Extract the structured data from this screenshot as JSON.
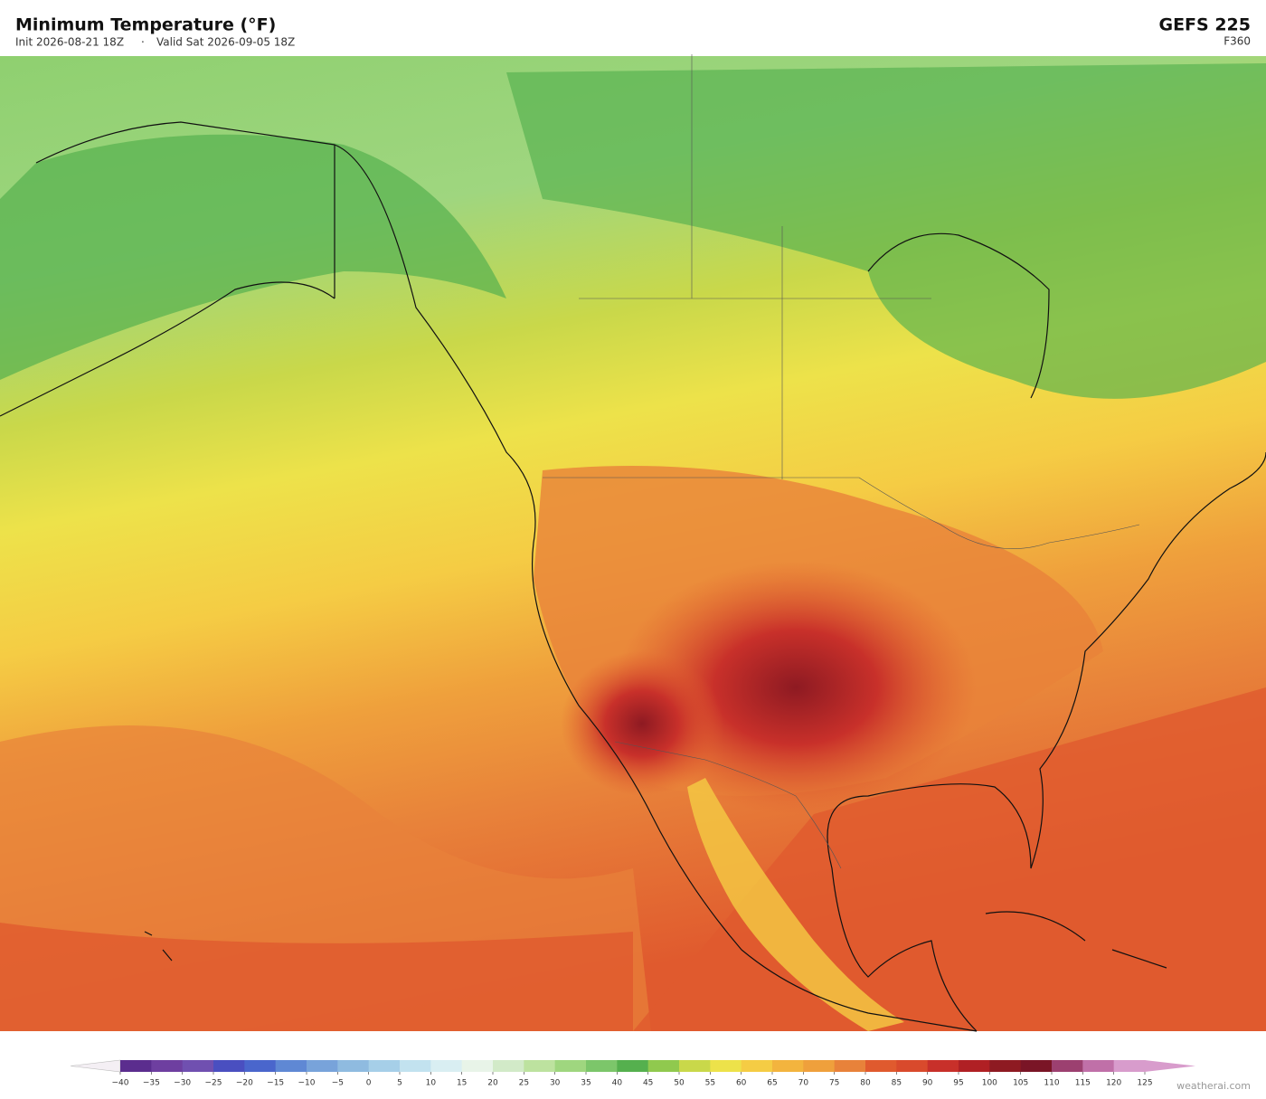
{
  "header": {
    "title": "Minimum Temperature  (°F)",
    "init": "Init 2026-08-21 18Z",
    "valid": "Valid Sat 2026-09-05 18Z",
    "model": "GEFS  225",
    "forecast_hour": "F360"
  },
  "colorbar": {
    "ticks": [
      {
        "value": -40,
        "label": "−40"
      },
      {
        "value": -35,
        "label": "−35"
      },
      {
        "value": -30,
        "label": "−30"
      },
      {
        "value": -25,
        "label": "−25"
      },
      {
        "value": -20,
        "label": "−20"
      },
      {
        "value": -15,
        "label": "−15"
      },
      {
        "value": -10,
        "label": "−10"
      },
      {
        "value": -5,
        "label": "−5"
      },
      0,
      5,
      10,
      15,
      20,
      25,
      30,
      35,
      40,
      45,
      50,
      55,
      60,
      65,
      70,
      75,
      80,
      85,
      90,
      95,
      100,
      105,
      110,
      115,
      120,
      125
    ],
    "colors": [
      "#5b2d8e",
      "#6e3fa0",
      "#7050b0",
      "#4a4fc0",
      "#4a66cc",
      "#5f88d4",
      "#78a3da",
      "#8fbbe0",
      "#a6cfe8",
      "#c2e2ef",
      "#d9eef2",
      "#e8f4e8",
      "#d2eac8",
      "#bde29f",
      "#9fd67f",
      "#7cc66a",
      "#55b04e",
      "#90c94e",
      "#c9d84a",
      "#ede24a",
      "#f5cc44",
      "#f3b43e",
      "#efa03c",
      "#e8823a",
      "#e05a2e",
      "#d94a2c",
      "#c8302a",
      "#b02024",
      "#8e1a22",
      "#7a1526",
      "#9c4070",
      "#c070a8",
      "#d89ccc"
    ],
    "under_color": "#f4eff4",
    "over_color": "#d89ccc"
  },
  "watermark": "weatherai.com"
}
